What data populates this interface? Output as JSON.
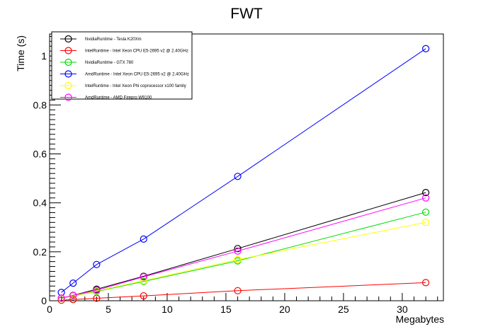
{
  "chart_data": {
    "type": "line",
    "title": "FWT",
    "xlabel": "Megabytes",
    "ylabel": "Time (s)",
    "xlim": [
      0,
      33.5
    ],
    "ylim": [
      0,
      1.09
    ],
    "grid": false,
    "legend_position": "top-left",
    "x_ticks": [
      "0",
      "5",
      "10",
      "15",
      "20",
      "25",
      "30"
    ],
    "y_ticks": [
      "0",
      "0.2",
      "0.4",
      "0.6",
      "0.8",
      "1"
    ],
    "x": [
      1,
      2,
      4,
      8,
      16,
      32
    ],
    "series": [
      {
        "name": "NvidiaRuntime - Tesla K20Xm",
        "color": "#000000",
        "values": [
          0.01,
          0.022,
          0.047,
          0.1,
          0.213,
          0.442
        ]
      },
      {
        "name": "IntelRuntime - Intel Xeon CPU E5-2695 v2 @ 2.40GHz",
        "color": "#ff0000",
        "values": [
          0.002,
          0.005,
          0.01,
          0.02,
          0.041,
          0.074
        ]
      },
      {
        "name": "NvidiaRuntime - GTX 780",
        "color": "#00dd00",
        "values": [
          0.009,
          0.019,
          0.038,
          0.079,
          0.163,
          0.362
        ]
      },
      {
        "name": "AmdRuntime - Intel Xeon CPU E5-2695 v2 @ 2.40GHz",
        "color": "#0000ff",
        "values": [
          0.034,
          0.072,
          0.148,
          0.252,
          0.508,
          1.03
        ]
      },
      {
        "name": "IntelRuntime - Intel Xeon Phi coprocessor x100 family",
        "color": "#ffff00",
        "values": [
          0.01,
          0.02,
          0.04,
          0.082,
          0.168,
          0.32
        ]
      },
      {
        "name": "AmdRuntime - AMD Firepro W9100",
        "color": "#ff00ff",
        "values": [
          0.011,
          0.022,
          0.043,
          0.098,
          0.203,
          0.42
        ]
      }
    ]
  }
}
